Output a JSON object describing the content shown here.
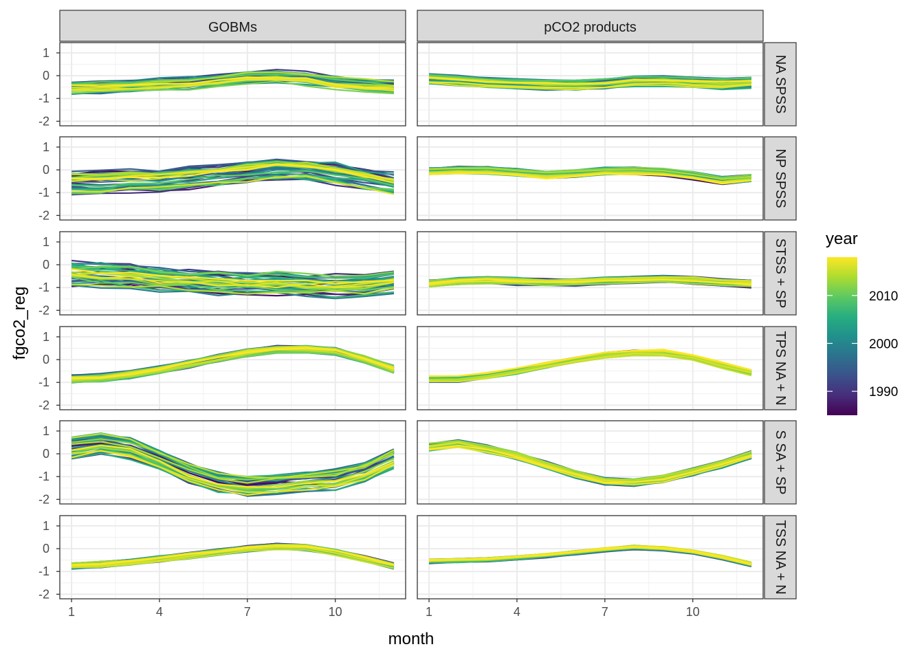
{
  "chart_data": {
    "type": "line",
    "title": "",
    "xlabel": "month",
    "ylabel": "fgco2_reg",
    "xlim": [
      0.6,
      12.4
    ],
    "ylim": [
      -2.2,
      1.45
    ],
    "x_ticks": [
      1,
      4,
      7,
      10
    ],
    "y_ticks": [
      -2,
      -1,
      0,
      1
    ],
    "x_tick_labels": [
      "1",
      "4",
      "7",
      "10"
    ],
    "y_tick_labels": [
      "-2",
      "-1",
      "0",
      "1"
    ],
    "grid": true,
    "x": [
      1,
      2,
      3,
      4,
      5,
      6,
      7,
      8,
      9,
      10,
      11,
      12
    ],
    "column_facets": [
      "GOBMs",
      "pCO2 products"
    ],
    "row_facets": [
      "NA SPSS",
      "NP SPSS",
      "STSS + SP",
      "TPS NA + N",
      "S SA + SP",
      "TSS NA + N"
    ],
    "legend": {
      "title": "year",
      "position": "right",
      "type": "colorbar",
      "range": [
        1985,
        2018
      ],
      "tick_values": [
        1990,
        2000,
        2010
      ],
      "tick_labels": [
        "1990",
        "2000",
        "2010"
      ],
      "colors": [
        "#440154",
        "#472d7b",
        "#3b528b",
        "#2c728e",
        "#21918c",
        "#28ae80",
        "#5ec962",
        "#addc30",
        "#fde725"
      ]
    },
    "panels": [
      {
        "row": "NA SPSS",
        "column": "GOBMs",
        "series_count": 35,
        "mean": [
          -0.5,
          -0.48,
          -0.45,
          -0.38,
          -0.33,
          -0.2,
          -0.05,
          0.0,
          -0.1,
          -0.28,
          -0.38,
          -0.45
        ],
        "spread": 0.28
      },
      {
        "row": "NA SPSS",
        "column": "pCO2 products",
        "series_count": 35,
        "mean": [
          -0.15,
          -0.2,
          -0.3,
          -0.35,
          -0.4,
          -0.42,
          -0.35,
          -0.25,
          -0.22,
          -0.3,
          -0.35,
          -0.3
        ],
        "spread": 0.2
      },
      {
        "row": "NP SPSS",
        "column": "GOBMs",
        "series_count": 35,
        "mean": [
          -0.55,
          -0.55,
          -0.48,
          -0.45,
          -0.35,
          -0.25,
          -0.08,
          0.05,
          0.0,
          -0.15,
          -0.4,
          -0.6
        ],
        "spread": 0.45
      },
      {
        "row": "NP SPSS",
        "column": "pCO2 products",
        "series_count": 35,
        "mean": [
          -0.05,
          0.0,
          0.0,
          -0.1,
          -0.22,
          -0.15,
          -0.05,
          -0.05,
          -0.1,
          -0.25,
          -0.45,
          -0.35
        ],
        "spread": 0.15
      },
      {
        "row": "STSS + SP",
        "column": "GOBMs",
        "series_count": 35,
        "mean": [
          -0.45,
          -0.5,
          -0.55,
          -0.7,
          -0.8,
          -0.85,
          -0.9,
          -0.9,
          -0.95,
          -1.0,
          -0.95,
          -0.8
        ],
        "spread": 0.5
      },
      {
        "row": "STSS + SP",
        "column": "pCO2 products",
        "series_count": 35,
        "mean": [
          -0.85,
          -0.75,
          -0.7,
          -0.75,
          -0.78,
          -0.78,
          -0.72,
          -0.68,
          -0.65,
          -0.7,
          -0.8,
          -0.85
        ],
        "spread": 0.15
      },
      {
        "row": "TPS NA + N",
        "column": "GOBMs",
        "series_count": 35,
        "mean": [
          -0.85,
          -0.8,
          -0.65,
          -0.45,
          -0.2,
          0.05,
          0.3,
          0.45,
          0.45,
          0.35,
          0.0,
          -0.45
        ],
        "spread": 0.15
      },
      {
        "row": "TPS NA + N",
        "column": "pCO2 products",
        "series_count": 35,
        "mean": [
          -0.85,
          -0.85,
          -0.7,
          -0.5,
          -0.25,
          0.0,
          0.2,
          0.3,
          0.3,
          0.1,
          -0.25,
          -0.55
        ],
        "spread": 0.12
      },
      {
        "row": "S SA + SP",
        "column": "GOBMs",
        "series_count": 35,
        "mean": [
          0.25,
          0.45,
          0.25,
          -0.25,
          -0.85,
          -1.25,
          -1.4,
          -1.35,
          -1.2,
          -1.15,
          -0.8,
          -0.2
        ],
        "spread": 0.4
      },
      {
        "row": "S SA + SP",
        "column": "pCO2 products",
        "series_count": 35,
        "mean": [
          0.3,
          0.45,
          0.2,
          -0.1,
          -0.5,
          -0.9,
          -1.2,
          -1.25,
          -1.1,
          -0.8,
          -0.45,
          -0.05
        ],
        "spread": 0.15
      },
      {
        "row": "TSS NA + N",
        "column": "GOBMs",
        "series_count": 35,
        "mean": [
          -0.75,
          -0.7,
          -0.6,
          -0.45,
          -0.3,
          -0.15,
          0.0,
          0.1,
          0.05,
          -0.15,
          -0.45,
          -0.75
        ],
        "spread": 0.12
      },
      {
        "row": "TSS NA + N",
        "column": "pCO2 products",
        "series_count": 35,
        "mean": [
          -0.55,
          -0.52,
          -0.48,
          -0.4,
          -0.3,
          -0.18,
          -0.05,
          0.05,
          0.0,
          -0.15,
          -0.4,
          -0.7
        ],
        "spread": 0.08
      }
    ]
  }
}
